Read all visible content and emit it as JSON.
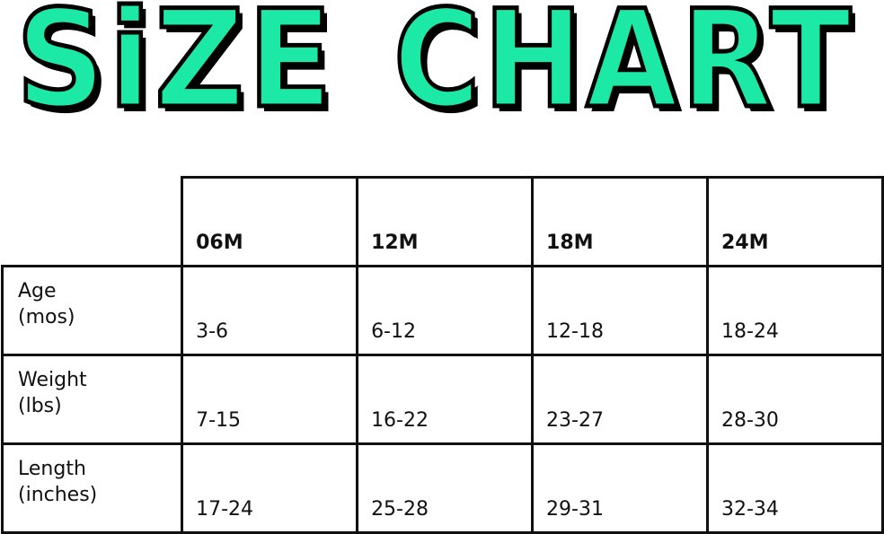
{
  "title": {
    "word1": "SiZE",
    "word2": "CHART",
    "color": "#1de9a6"
  },
  "chart_data": {
    "type": "table",
    "columns": [
      "06M",
      "12M",
      "18M",
      "24M"
    ],
    "rows": [
      {
        "label_line1": "Age",
        "label_line2": "(mos)",
        "values": [
          "3-6",
          "6-12",
          "12-18",
          "18-24"
        ]
      },
      {
        "label_line1": "Weight",
        "label_line2": "(lbs)",
        "values": [
          "7-15",
          "16-22",
          "23-27",
          "28-30"
        ]
      },
      {
        "label_line1": "Length",
        "label_line2": "(inches)",
        "values": [
          "17-24",
          "25-28",
          "29-31",
          "32-34"
        ]
      }
    ]
  }
}
